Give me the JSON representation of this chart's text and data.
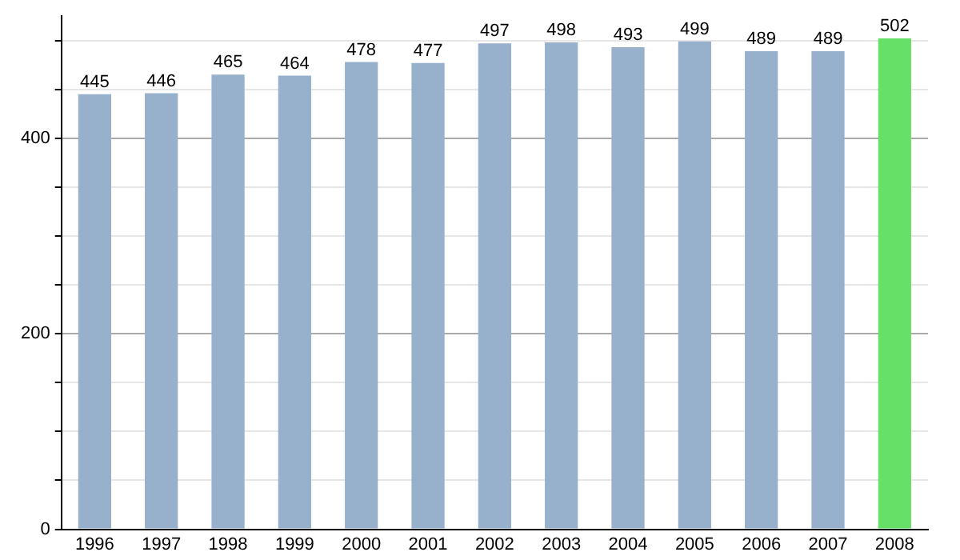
{
  "chart_data": {
    "type": "bar",
    "categories": [
      "1996",
      "1997",
      "1998",
      "1999",
      "2000",
      "2001",
      "2002",
      "2003",
      "2004",
      "2005",
      "2006",
      "2007",
      "2008"
    ],
    "values": [
      445,
      446,
      465,
      464,
      478,
      477,
      497,
      498,
      493,
      499,
      489,
      489,
      502
    ],
    "colors": [
      "#97b0cc",
      "#97b0cc",
      "#97b0cc",
      "#97b0cc",
      "#97b0cc",
      "#97b0cc",
      "#97b0cc",
      "#97b0cc",
      "#97b0cc",
      "#97b0cc",
      "#97b0cc",
      "#97b0cc",
      "#66e066"
    ],
    "ylim": [
      0,
      525
    ],
    "yticks": [
      0,
      {
        "value": 50,
        "label": null
      },
      {
        "value": 100,
        "label": null
      },
      {
        "value": 150,
        "label": null
      },
      200,
      {
        "value": 250,
        "label": null
      },
      {
        "value": 300,
        "label": null
      },
      {
        "value": 350,
        "label": null
      },
      400,
      {
        "value": 450,
        "label": null
      },
      {
        "value": 500,
        "label": null
      }
    ],
    "grid": "y",
    "data_labels": true,
    "legend": false
  }
}
